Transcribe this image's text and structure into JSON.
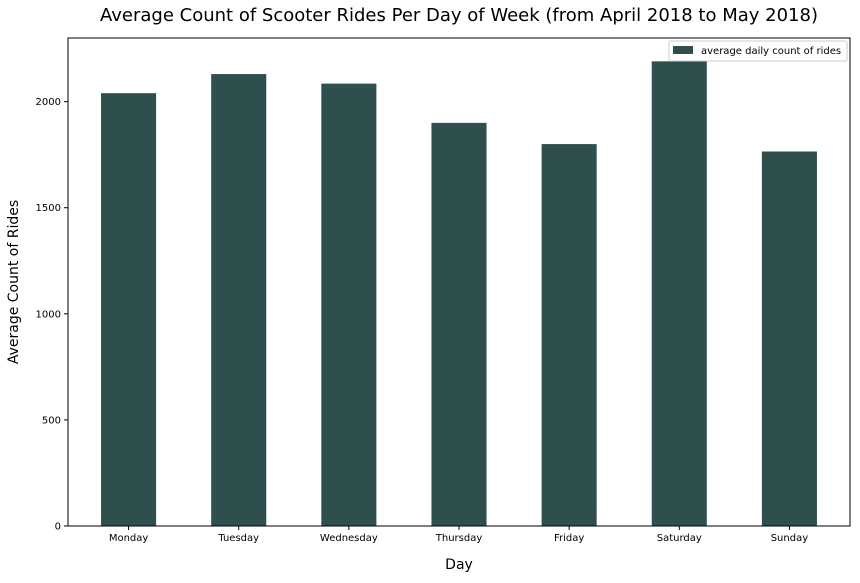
{
  "chart_data": {
    "type": "bar",
    "title": "Average Count of Scooter Rides Per Day of Week (from April 2018 to May 2018)",
    "xlabel": "Day",
    "ylabel": "Average Count of Rides",
    "categories": [
      "Monday",
      "Tuesday",
      "Wednesday",
      "Thursday",
      "Friday",
      "Saturday",
      "Sunday"
    ],
    "series": [
      {
        "name": "average daily count of rides",
        "values": [
          2040,
          2130,
          2085,
          1900,
          1800,
          2190,
          1765
        ]
      }
    ],
    "ylim": [
      0,
      2300
    ],
    "yticks": [
      0,
      500,
      1000,
      1500,
      2000
    ],
    "grid": false,
    "legend_position": "top-right",
    "colors": {
      "bar": "#2f4f4f"
    }
  }
}
